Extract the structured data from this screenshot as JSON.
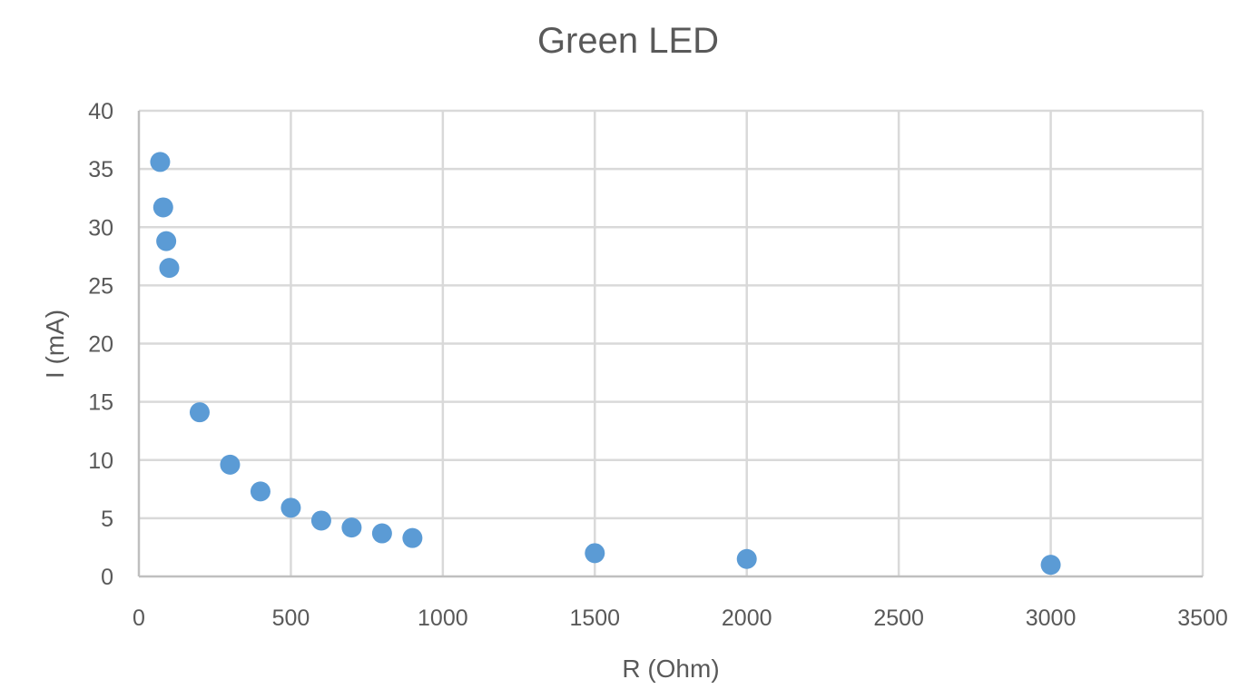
{
  "chart_data": {
    "type": "scatter",
    "title": "Green LED",
    "xlabel": "R (Ohm)",
    "ylabel": "I (mA)",
    "xlim": [
      0,
      3500
    ],
    "ylim": [
      0,
      40
    ],
    "x_ticks": [
      0,
      500,
      1000,
      1500,
      2000,
      2500,
      3000,
      3500
    ],
    "y_ticks": [
      0,
      5,
      10,
      15,
      20,
      25,
      30,
      35,
      40
    ],
    "grid": true,
    "legend": "none",
    "marker_color": "#5b9bd5",
    "series": [
      {
        "points": [
          {
            "x": 70,
            "y": 35.6
          },
          {
            "x": 80,
            "y": 31.7
          },
          {
            "x": 90,
            "y": 28.8
          },
          {
            "x": 100,
            "y": 26.5
          },
          {
            "x": 200,
            "y": 14.1
          },
          {
            "x": 300,
            "y": 9.6
          },
          {
            "x": 400,
            "y": 7.3
          },
          {
            "x": 500,
            "y": 5.9
          },
          {
            "x": 600,
            "y": 4.8
          },
          {
            "x": 700,
            "y": 4.2
          },
          {
            "x": 800,
            "y": 3.7
          },
          {
            "x": 900,
            "y": 3.3
          },
          {
            "x": 1500,
            "y": 2.0
          },
          {
            "x": 2000,
            "y": 1.5
          },
          {
            "x": 3000,
            "y": 1.0
          }
        ]
      }
    ]
  }
}
